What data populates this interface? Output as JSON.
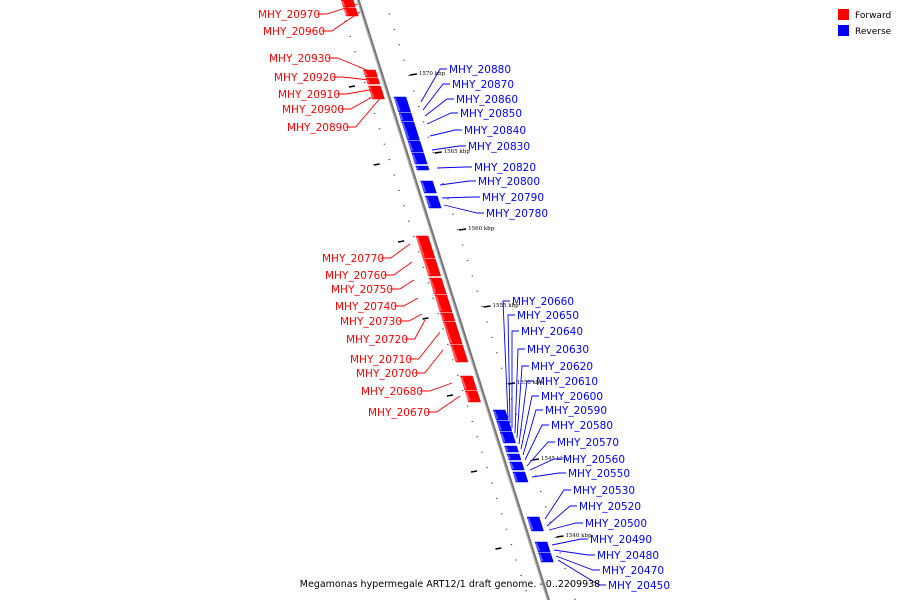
{
  "caption": "Megamonas hypermegale ART12/1 draft genome. - 0..2209938",
  "legend": [
    {
      "label": "Forward",
      "color": "#ff0000"
    },
    {
      "label": "Reverse",
      "color": "#0000ff"
    }
  ],
  "colors": {
    "forward": "#ff0000",
    "reverse": "#0000ff",
    "backbone": "#888888"
  },
  "ticks": [
    "1570 kbp",
    "1565 kbp",
    "1560 kbp",
    "1555 kbp",
    "1550 kbp",
    "1545 kbp",
    "1540 kbp"
  ],
  "forward_genes": [
    "MHY_20970",
    "MHY_20960",
    "MHY_20930",
    "MHY_20920",
    "MHY_20910",
    "MHY_20900",
    "MHY_20890",
    "MHY_20770",
    "MHY_20760",
    "MHY_20750",
    "MHY_20740",
    "MHY_20730",
    "MHY_20720",
    "MHY_20710",
    "MHY_20700",
    "MHY_20680",
    "MHY_20670"
  ],
  "reverse_genes": [
    "MHY_20880",
    "MHY_20870",
    "MHY_20860",
    "MHY_20850",
    "MHY_20840",
    "MHY_20830",
    "MHY_20820",
    "MHY_20800",
    "MHY_20790",
    "MHY_20780",
    "MHY_20660",
    "MHY_20650",
    "MHY_20640",
    "MHY_20630",
    "MHY_20620",
    "MHY_20610",
    "MHY_20600",
    "MHY_20590",
    "MHY_20580",
    "MHY_20570",
    "MHY_20560",
    "MHY_20550",
    "MHY_20530",
    "MHY_20520",
    "MHY_20500",
    "MHY_20490",
    "MHY_20480",
    "MHY_20470",
    "MHY_20450"
  ]
}
